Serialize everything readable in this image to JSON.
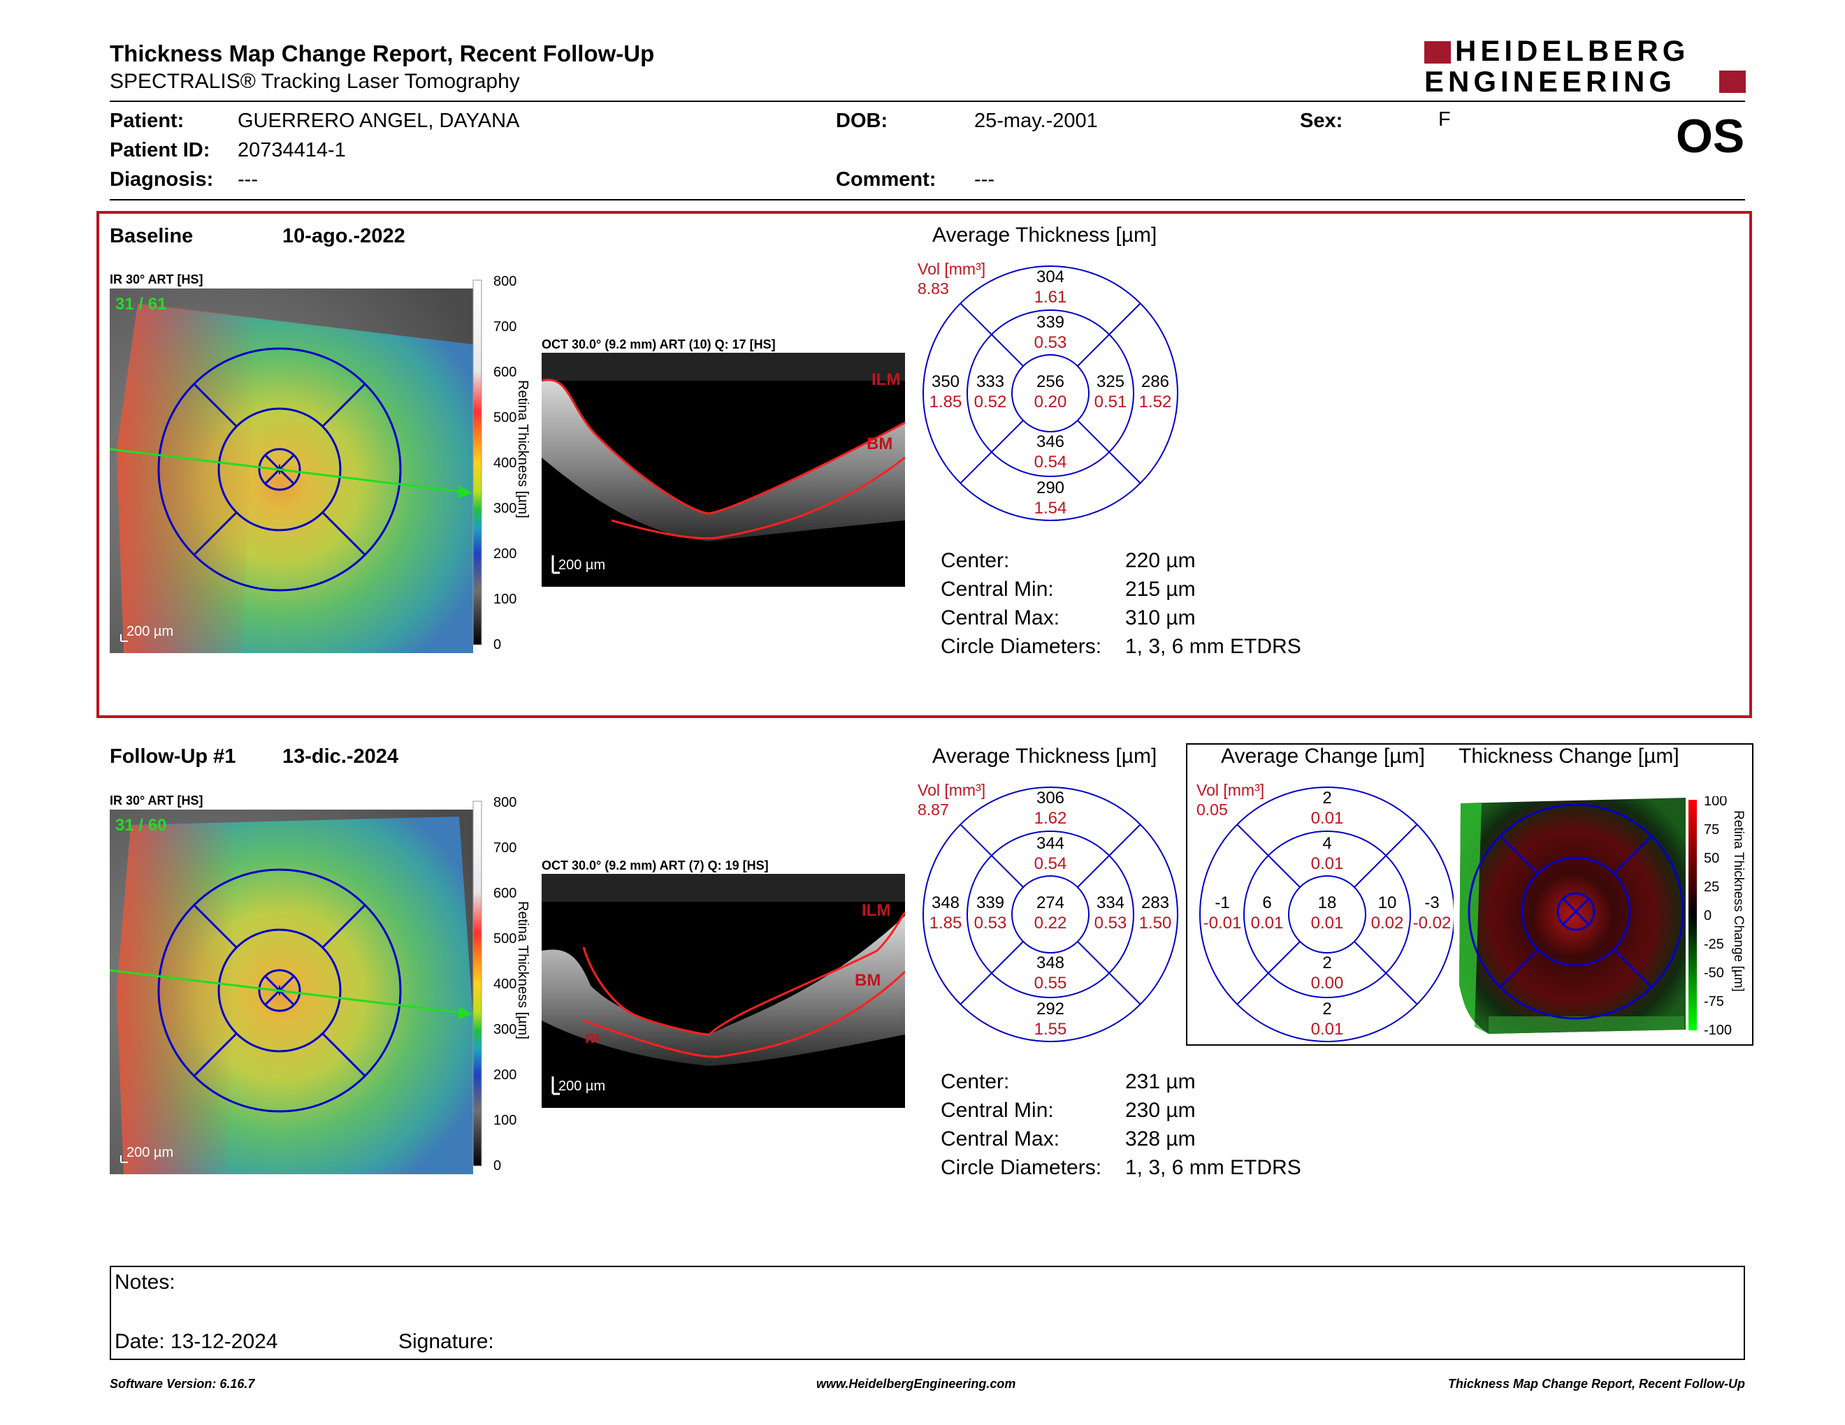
{
  "header": {
    "title": "Thickness Map Change Report, Recent Follow-Up",
    "subtitle": "SPECTRALIS® Tracking Laser Tomography",
    "brand_line1": "HEIDELBERG",
    "brand_line2": "ENGINEERING",
    "eye": "OS",
    "brand_color": "#a2182e"
  },
  "patient": {
    "patient_label": "Patient:",
    "patient_value": "GUERRERO ANGEL, DAYANA",
    "id_label": "Patient ID:",
    "id_value": "20734414-1",
    "diagnosis_label": "Diagnosis:",
    "diagnosis_value": "---",
    "dob_label": "DOB:",
    "dob_value": "25-may.-2001",
    "comment_label": "Comment:",
    "comment_value": "---",
    "sex_label": "Sex:",
    "sex_value": "F"
  },
  "baseline": {
    "label": "Baseline",
    "date": "10-ago.-2022",
    "ir_label": "IR 30° ART [HS]",
    "ir_quality": "31 / 61",
    "scale_label": "200 µm",
    "oct_label": "OCT 30.0° (9.2 mm) ART (10) Q: 17 [HS]",
    "oct_scale": "200 µm",
    "ilm": "ILM",
    "bm": "BM",
    "avg_title": "Average Thickness [µm]",
    "vol_label": "Vol [mm³]",
    "vol_total": "8.83",
    "sectors": {
      "outer_top": [
        "304",
        "1.61"
      ],
      "inner_top": [
        "339",
        "0.53"
      ],
      "outer_left": [
        "350",
        "1.85"
      ],
      "inner_left": [
        "333",
        "0.52"
      ],
      "center": [
        "256",
        "0.20"
      ],
      "inner_right": [
        "325",
        "0.51"
      ],
      "outer_right": [
        "286",
        "1.52"
      ],
      "inner_bottom": [
        "346",
        "0.54"
      ],
      "outer_bottom": [
        "290",
        "1.54"
      ]
    },
    "stats": [
      {
        "label": "Center:",
        "value": "220 µm"
      },
      {
        "label": "Central Min:",
        "value": "215 µm"
      },
      {
        "label": "Central Max:",
        "value": "310 µm"
      },
      {
        "label": "Circle Diameters:",
        "value": "1, 3, 6 mm ETDRS"
      }
    ]
  },
  "followup": {
    "label": "Follow-Up #1",
    "date": "13-dic.-2024",
    "ir_label": "IR 30° ART [HS]",
    "ir_quality": "31 / 60",
    "scale_label": "200 µm",
    "oct_label": "OCT 30.0° (9.2 mm) ART (7) Q: 19 [HS]",
    "oct_scale": "200 µm",
    "ilm": "ILM",
    "bm": "BM",
    "m": "m",
    "avg_title": "Average Thickness [µm]",
    "vol_label": "Vol [mm³]",
    "vol_total": "8.87",
    "sectors": {
      "outer_top": [
        "306",
        "1.62"
      ],
      "inner_top": [
        "344",
        "0.54"
      ],
      "outer_left": [
        "348",
        "1.85"
      ],
      "inner_left": [
        "339",
        "0.53"
      ],
      "center": [
        "274",
        "0.22"
      ],
      "inner_right": [
        "334",
        "0.53"
      ],
      "outer_right": [
        "283",
        "1.50"
      ],
      "inner_bottom": [
        "348",
        "0.55"
      ],
      "outer_bottom": [
        "292",
        "1.55"
      ]
    },
    "stats": [
      {
        "label": "Center:",
        "value": "231 µm"
      },
      {
        "label": "Central Min:",
        "value": "230 µm"
      },
      {
        "label": "Central Max:",
        "value": "328 µm"
      },
      {
        "label": "Circle Diameters:",
        "value": "1, 3, 6 mm ETDRS"
      }
    ]
  },
  "change": {
    "avg_change_title": "Average Change [µm]",
    "thickness_change_title": "Thickness Change [µm]",
    "vol_label": "Vol [mm³]",
    "vol_total": "0.05",
    "sectors": {
      "outer_top": [
        "2",
        "0.01"
      ],
      "inner_top": [
        "4",
        "0.01"
      ],
      "outer_left": [
        "-1",
        "-0.01"
      ],
      "inner_left": [
        "6",
        "0.01"
      ],
      "center": [
        "18",
        "0.01"
      ],
      "inner_right": [
        "10",
        "0.02"
      ],
      "outer_right": [
        "-3",
        "-0.02"
      ],
      "inner_bottom": [
        "2",
        "0.00"
      ],
      "outer_bottom": [
        "2",
        "0.01"
      ]
    },
    "colorbar_title": "Retina Thickness Change [µm]",
    "colorbar_ticks": [
      "100",
      "75",
      "50",
      "25",
      "0",
      "-25",
      "-50",
      "-75",
      "-100"
    ]
  },
  "colorbar": {
    "title": "Retina Thickness [µm]",
    "ticks": [
      "800",
      "700",
      "600",
      "500",
      "400",
      "300",
      "200",
      "100",
      "0"
    ]
  },
  "notes": {
    "notes_label": "Notes:",
    "date_label": "Date: 13-12-2024",
    "signature_label": "Signature:"
  },
  "footer": {
    "left": "Software Version: 6.16.7",
    "center": "www.HeidelbergEngineering.com",
    "right": "Thickness Map Change Report, Recent Follow-Up"
  }
}
